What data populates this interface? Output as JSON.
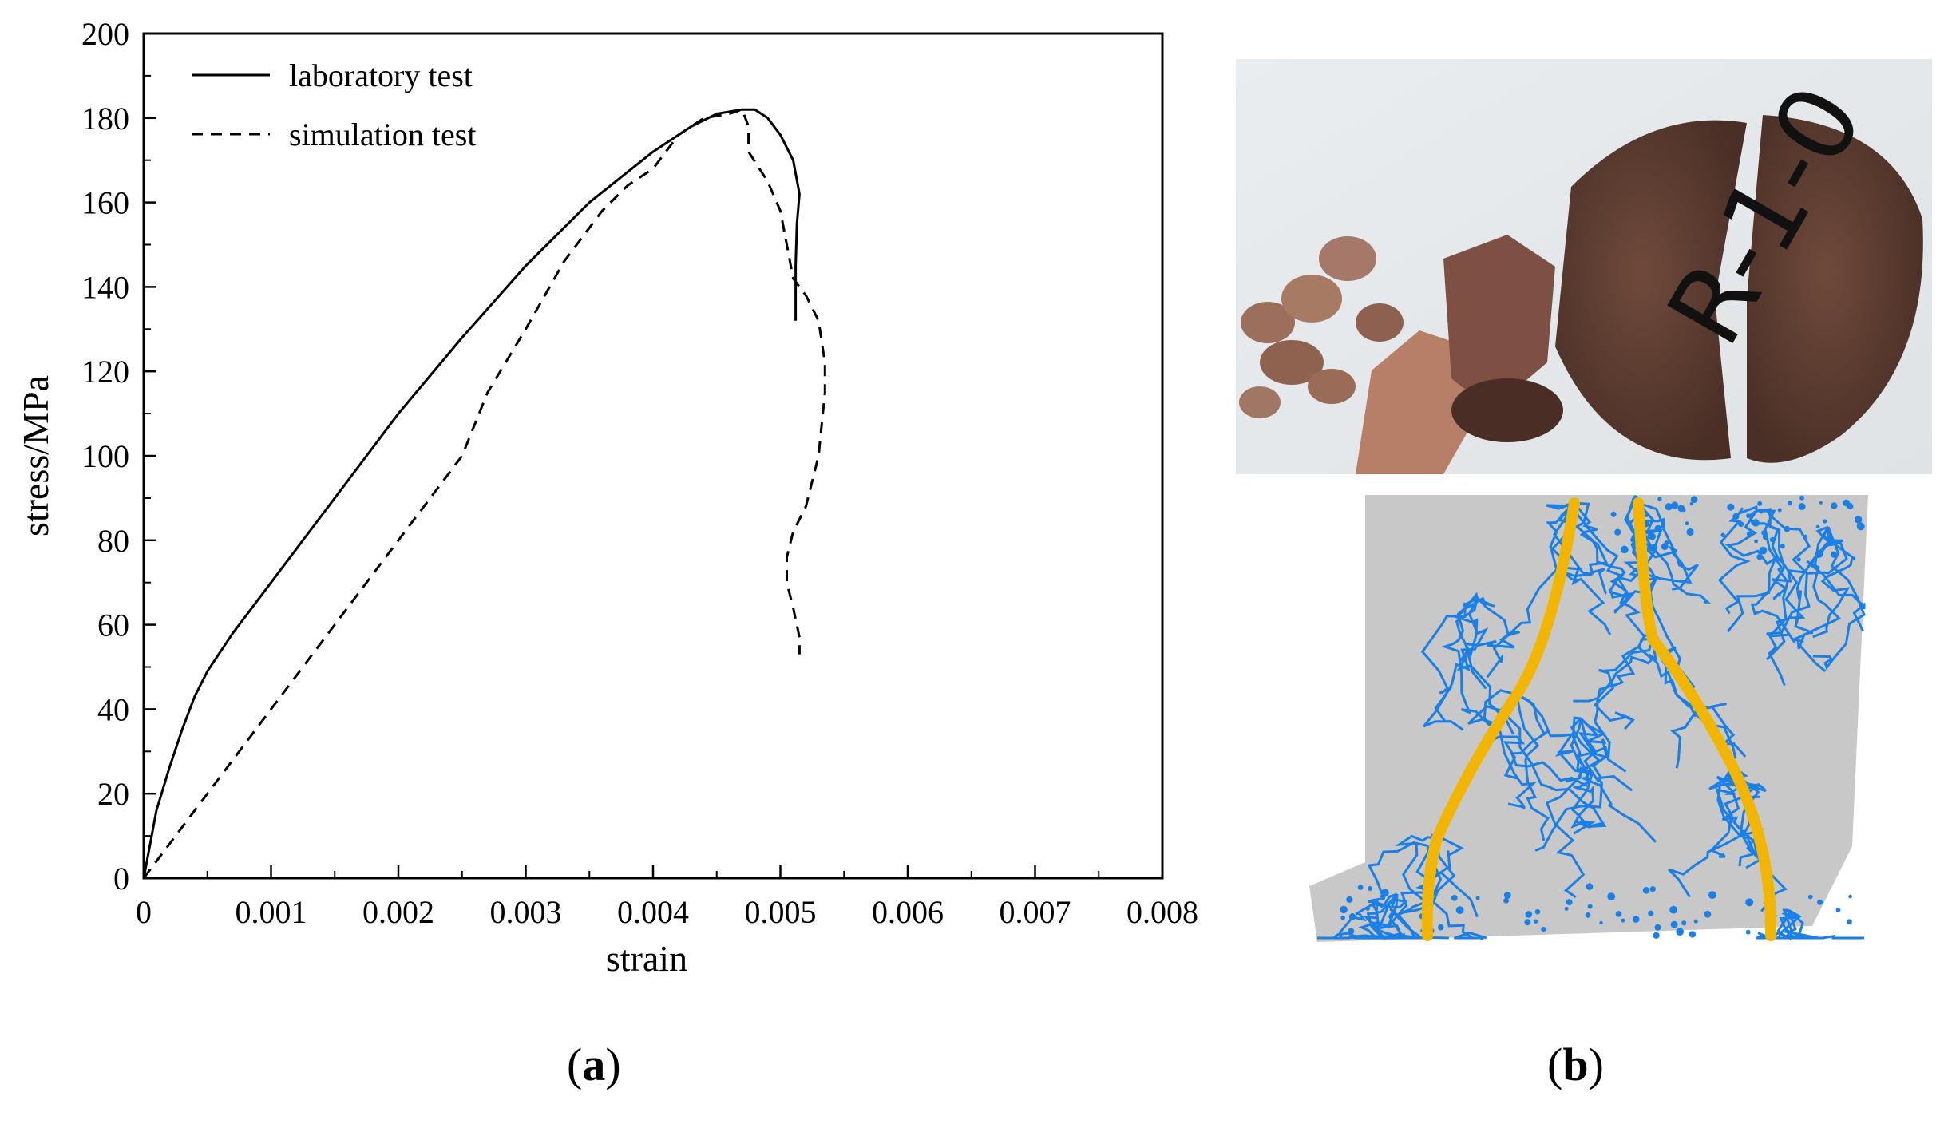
{
  "chart_data": {
    "type": "line",
    "xlabel": "strain",
    "ylabel": "stress/MPa",
    "xlim": [
      0,
      0.008
    ],
    "ylim": [
      0,
      200
    ],
    "x_ticks": [
      "0",
      "0.001",
      "0.002",
      "0.003",
      "0.004",
      "0.005",
      "0.006",
      "0.007",
      "0.008"
    ],
    "y_ticks": [
      "0",
      "20",
      "40",
      "60",
      "80",
      "100",
      "120",
      "140",
      "160",
      "180",
      "200"
    ],
    "legend_position": "top-left",
    "grid": false,
    "series": [
      {
        "name": "laboratory test",
        "style": "solid",
        "points": [
          [
            0,
            0
          ],
          [
            5e-05,
            8
          ],
          [
            0.0001,
            16
          ],
          [
            0.0002,
            26
          ],
          [
            0.0003,
            35
          ],
          [
            0.0004,
            43
          ],
          [
            0.0005,
            49
          ],
          [
            0.0007,
            58
          ],
          [
            0.001,
            70
          ],
          [
            0.0015,
            90
          ],
          [
            0.002,
            110
          ],
          [
            0.0025,
            128
          ],
          [
            0.003,
            145
          ],
          [
            0.0035,
            160
          ],
          [
            0.004,
            172
          ],
          [
            0.0043,
            178
          ],
          [
            0.0045,
            181
          ],
          [
            0.0047,
            182
          ],
          [
            0.0048,
            182
          ],
          [
            0.0049,
            180
          ],
          [
            0.005,
            176
          ],
          [
            0.0051,
            170
          ],
          [
            0.00515,
            162
          ],
          [
            0.00513,
            155
          ],
          [
            0.00512,
            145
          ],
          [
            0.00512,
            132
          ]
        ]
      },
      {
        "name": "simulation test",
        "style": "dashed",
        "points": [
          [
            0,
            0
          ],
          [
            0.0005,
            20
          ],
          [
            0.001,
            40
          ],
          [
            0.0015,
            60
          ],
          [
            0.002,
            80
          ],
          [
            0.0025,
            100
          ],
          [
            0.0027,
            115
          ],
          [
            0.003,
            130
          ],
          [
            0.0033,
            146
          ],
          [
            0.0036,
            158
          ],
          [
            0.0038,
            164
          ],
          [
            0.004,
            168
          ],
          [
            0.0042,
            176
          ],
          [
            0.0044,
            180
          ],
          [
            0.0046,
            181
          ],
          [
            0.0047,
            182
          ],
          [
            0.00475,
            178
          ],
          [
            0.00475,
            172
          ],
          [
            0.0049,
            165
          ],
          [
            0.005,
            158
          ],
          [
            0.00505,
            150
          ],
          [
            0.0051,
            142
          ],
          [
            0.0052,
            138
          ],
          [
            0.0053,
            132
          ],
          [
            0.00535,
            122
          ],
          [
            0.00535,
            115
          ],
          [
            0.0053,
            100
          ],
          [
            0.0052,
            88
          ],
          [
            0.0051,
            82
          ],
          [
            0.00505,
            76
          ],
          [
            0.00505,
            70
          ],
          [
            0.0051,
            64
          ],
          [
            0.00515,
            57
          ],
          [
            0.00515,
            53
          ]
        ]
      }
    ]
  },
  "panels": {
    "a_label": "a",
    "b_label": "b"
  },
  "photo_specimen": {
    "marking_text": "R-1-0"
  },
  "colors": {
    "crack": "#1a7fe6",
    "fracture_path": "#f2b600",
    "particles": "#c8c8c8"
  }
}
